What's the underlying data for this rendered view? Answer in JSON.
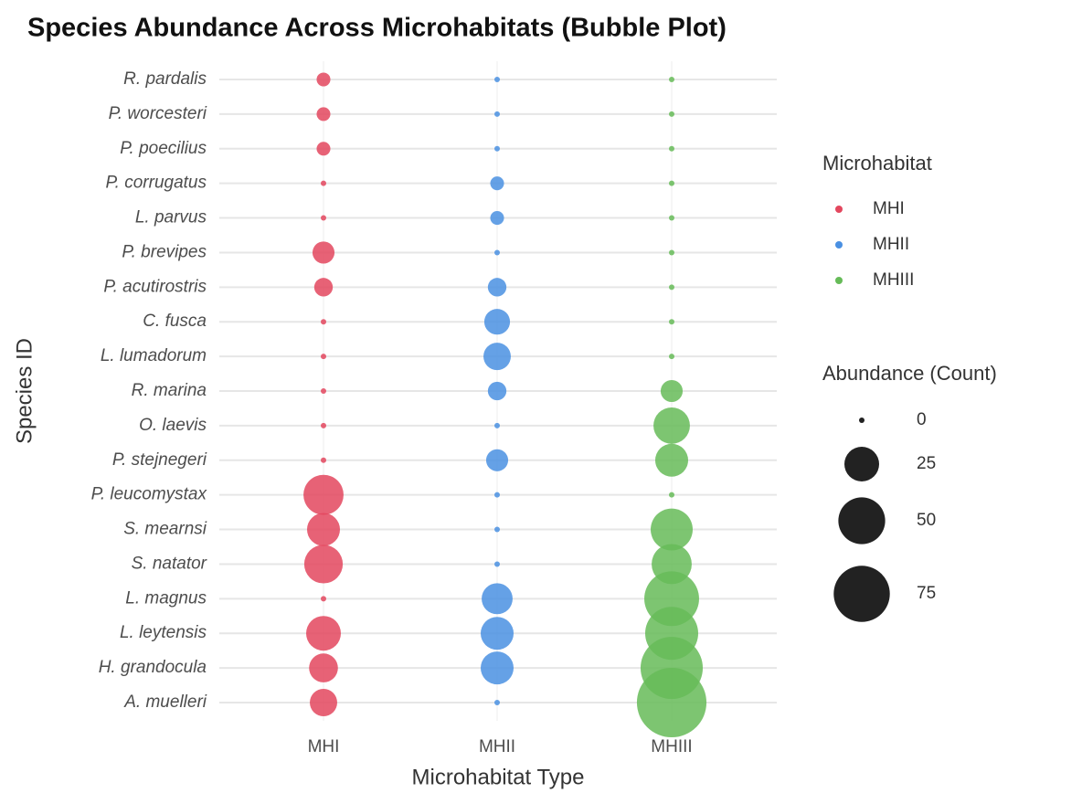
{
  "chart_data": {
    "type": "bubble",
    "title": "Species Abundance Across Microhabitats (Bubble Plot)",
    "x_label": "Microhabitat Type",
    "y_label": "Species ID",
    "x_categories": [
      "MHI",
      "MHII",
      "MHIII"
    ],
    "categories": [
      "R. pardalis",
      "P. worcesteri",
      "P. poecilius",
      "P. corrugatus",
      "L. parvus",
      "P. brevipes",
      "P. acutirostris",
      "C. fusca",
      "L. lumadorum",
      "R. marina",
      "O. laevis",
      "P. stejnegeri",
      "P. leucomystax",
      "S. mearnsi",
      "S. natator",
      "L. magnus",
      "L. leytensis",
      "H. grandocula",
      "A. muelleri"
    ],
    "series": [
      {
        "name": "MHI",
        "color": "#e3475e",
        "values": [
          2,
          2,
          2,
          0,
          0,
          8,
          5,
          0,
          0,
          0,
          0,
          0,
          35,
          22,
          32,
          0,
          25,
          16,
          14
        ]
      },
      {
        "name": "MHII",
        "color": "#4a90e2",
        "values": [
          0,
          0,
          0,
          2,
          2,
          0,
          5,
          12,
          14,
          5,
          0,
          8,
          0,
          0,
          0,
          19,
          22,
          22,
          0
        ]
      },
      {
        "name": "MHIII",
        "color": "#66bb58",
        "values": [
          0,
          0,
          0,
          0,
          0,
          0,
          0,
          0,
          0,
          8,
          28,
          22,
          0,
          39,
          35,
          71,
          66,
          94,
          120
        ]
      }
    ],
    "legend_title": "Microhabitat",
    "size_legend": {
      "title": "Abundance (Count)",
      "values": [
        0,
        25,
        50,
        75
      ]
    },
    "grid": true
  }
}
